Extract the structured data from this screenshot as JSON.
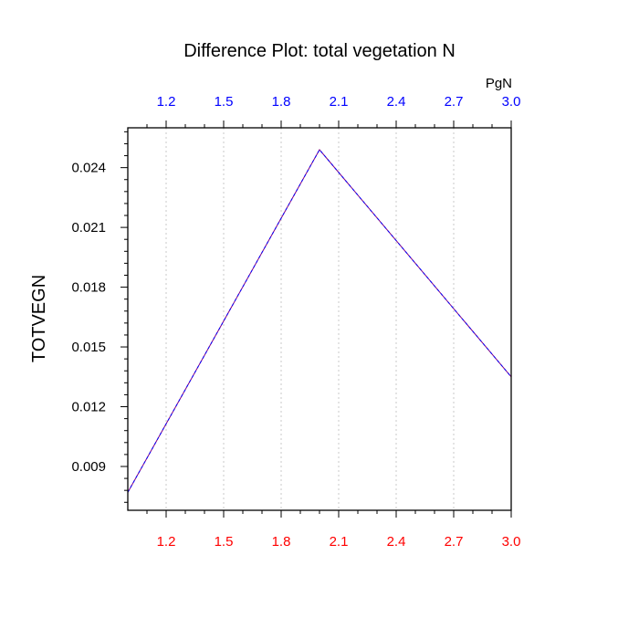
{
  "chart_data": {
    "type": "line",
    "title": "Difference Plot: total vegetation N",
    "ylabel": "TOTVEGN",
    "top_axis_units": "PgN",
    "xlim": [
      1.0,
      3.0
    ],
    "ylim": [
      0.0068,
      0.026
    ],
    "x_ticks": [
      "1.2",
      "1.5",
      "1.8",
      "2.1",
      "2.4",
      "2.7",
      "3.0"
    ],
    "y_ticks": [
      "0.009",
      "0.012",
      "0.015",
      "0.018",
      "0.021",
      "0.024"
    ],
    "grid": "vertical dotted",
    "series": [
      {
        "x": [
          1.0,
          2.0,
          3.0
        ],
        "y": [
          0.0077,
          0.0249,
          0.0135
        ],
        "color": "#800080",
        "dash_color": "#0000ff",
        "style": "dashed"
      }
    ],
    "colors": {
      "bottom_ticks": "#ff0000",
      "top_ticks": "#0000ff",
      "left_ticks": "#000000"
    }
  }
}
